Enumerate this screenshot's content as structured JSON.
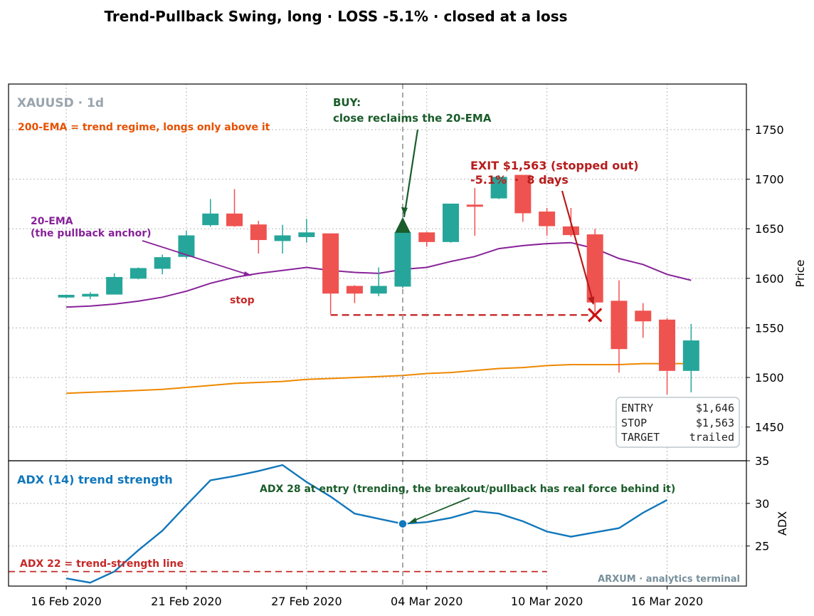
{
  "title": "Trend-Pullback Swing, long · LOSS -5.1% · closed at a loss",
  "chart_data": [
    {
      "type": "candlestick",
      "panel": "price",
      "symbol_label": "XAUUSD · 1d",
      "ylabel": "Price",
      "ylim": [
        1416,
        1796
      ],
      "yticks": [
        1450,
        1500,
        1550,
        1600,
        1650,
        1700,
        1750
      ],
      "xticks": [
        {
          "i": 0,
          "label": "16 Feb 2020"
        },
        {
          "i": 5,
          "label": "21 Feb 2020"
        },
        {
          "i": 10,
          "label": "27 Feb 2020"
        },
        {
          "i": 15,
          "label": "04 Mar 2020"
        },
        {
          "i": 20,
          "label": "10 Mar 2020"
        },
        {
          "i": 25,
          "label": "16 Mar 2020"
        }
      ],
      "x_range": [
        -2.4,
        28.3
      ],
      "grid": true,
      "candles": [
        {
          "o": 1581,
          "h": 1583,
          "l": 1580,
          "c": 1583
        },
        {
          "o": 1582,
          "h": 1586,
          "l": 1579,
          "c": 1584
        },
        {
          "o": 1584,
          "h": 1605,
          "l": 1584,
          "c": 1601
        },
        {
          "o": 1600,
          "h": 1611,
          "l": 1599,
          "c": 1610
        },
        {
          "o": 1610,
          "h": 1624,
          "l": 1604,
          "c": 1621
        },
        {
          "o": 1622,
          "h": 1648,
          "l": 1620,
          "c": 1643
        },
        {
          "o": 1654,
          "h": 1680,
          "l": 1652,
          "c": 1665
        },
        {
          "o": 1665,
          "h": 1690,
          "l": 1652,
          "c": 1653
        },
        {
          "o": 1654,
          "h": 1658,
          "l": 1625,
          "c": 1639
        },
        {
          "o": 1638,
          "h": 1654,
          "l": 1625,
          "c": 1643
        },
        {
          "o": 1642,
          "h": 1660,
          "l": 1636,
          "c": 1646
        },
        {
          "o": 1645,
          "h": 1645,
          "l": 1564,
          "c": 1585
        },
        {
          "o": 1592,
          "h": 1593,
          "l": 1575,
          "c": 1585
        },
        {
          "o": 1585,
          "h": 1611,
          "l": 1582,
          "c": 1592
        },
        {
          "o": 1592,
          "h": 1646,
          "l": 1590,
          "c": 1646
        },
        {
          "o": 1646,
          "h": 1647,
          "l": 1632,
          "c": 1637
        },
        {
          "o": 1637,
          "h": 1675,
          "l": 1636,
          "c": 1675
        },
        {
          "o": 1674,
          "h": 1691,
          "l": 1643,
          "c": 1673
        },
        {
          "o": 1681,
          "h": 1704,
          "l": 1680,
          "c": 1702
        },
        {
          "o": 1704,
          "h": 1704,
          "l": 1657,
          "c": 1666
        },
        {
          "o": 1667,
          "h": 1671,
          "l": 1643,
          "c": 1653
        },
        {
          "o": 1652,
          "h": 1671,
          "l": 1642,
          "c": 1644
        },
        {
          "o": 1644,
          "h": 1650,
          "l": 1566,
          "c": 1576
        },
        {
          "o": 1577,
          "h": 1598,
          "l": 1505,
          "c": 1529
        },
        {
          "o": 1567,
          "h": 1575,
          "l": 1540,
          "c": 1557
        },
        {
          "o": 1558,
          "h": 1560,
          "l": 1483,
          "c": 1507
        },
        {
          "o": 1507,
          "h": 1554,
          "l": 1485,
          "c": 1537
        }
      ],
      "series": [
        {
          "name": "20-EMA",
          "color": "#882299",
          "values": [
            1571,
            1572,
            1574,
            1577,
            1581,
            1587,
            1595,
            1601,
            1605,
            1608,
            1611,
            1608,
            1606,
            1605,
            1609,
            1611,
            1617,
            1622,
            1630,
            1633,
            1635,
            1636,
            1630,
            1620,
            1614,
            1604,
            1598
          ]
        },
        {
          "name": "200-EMA",
          "color": "#ee8800",
          "values": [
            1484,
            1485,
            1486,
            1487,
            1488,
            1490,
            1492,
            1494,
            1495,
            1496,
            1498,
            1499,
            1500,
            1501,
            1502,
            1504,
            1505,
            1507,
            1509,
            1510,
            1512,
            1513,
            1513,
            1513,
            1514,
            1514,
            1514
          ]
        }
      ],
      "stop_level": 1563,
      "stop_from_index": 11,
      "stop_to_index": 22,
      "entry_index": 14,
      "entry_price": 1646,
      "exit_index": 22,
      "exit_price": 1563,
      "annotations": {
        "ema200_note": "200-EMA = trend regime, longs only above it",
        "ema20_note_line1": "20-EMA",
        "ema20_note_line2": "(the pullback anchor)",
        "stop_label": "stop",
        "buy_line1": "BUY:",
        "buy_line2": "close reclaims the 20-EMA",
        "exit_line1": "EXIT $1,563 (stopped out)",
        "exit_line2": "-5.1%  ·  8 days"
      },
      "info_box": [
        {
          "label": "ENTRY",
          "value": "$1,646"
        },
        {
          "label": "STOP",
          "value": "$1,563"
        },
        {
          "label": "TARGET",
          "value": "trailed"
        }
      ]
    },
    {
      "type": "line",
      "panel": "indicator",
      "title": "ADX (14) trend strength",
      "ylabel": "ADX",
      "ylim": [
        20.3,
        35
      ],
      "yticks": [
        25,
        30,
        35
      ],
      "grid": true,
      "series": [
        {
          "name": "ADX (14)",
          "color": "#1177bb",
          "values": [
            21.2,
            20.7,
            22.0,
            24.5,
            26.8,
            29.8,
            32.7,
            33.2,
            33.8,
            34.5,
            32.5,
            30.8,
            28.8,
            28.2,
            27.6,
            27.8,
            28.3,
            29.1,
            28.8,
            27.9,
            26.7,
            26.1,
            26.6,
            27.1,
            28.9,
            30.4
          ]
        }
      ],
      "x_offset": 0,
      "threshold": 22,
      "threshold_label": "ADX 22 = trend-strength line",
      "entry_label": "ADX 28 at entry (trending, the breakout/pullback has real force behind it)",
      "entry_adx_index": 14
    }
  ],
  "watermark": "ARXUM · analytics terminal",
  "colors": {
    "up": "#26a69a",
    "down": "#ef5350",
    "buy": "#1a5c2a",
    "exit": "#b71c1c",
    "ema200_text": "#e65100",
    "ema20_text": "#882299",
    "adx_text": "#1177bb",
    "symbol_text": "#9aa4ad",
    "watermark": "#78909c"
  }
}
